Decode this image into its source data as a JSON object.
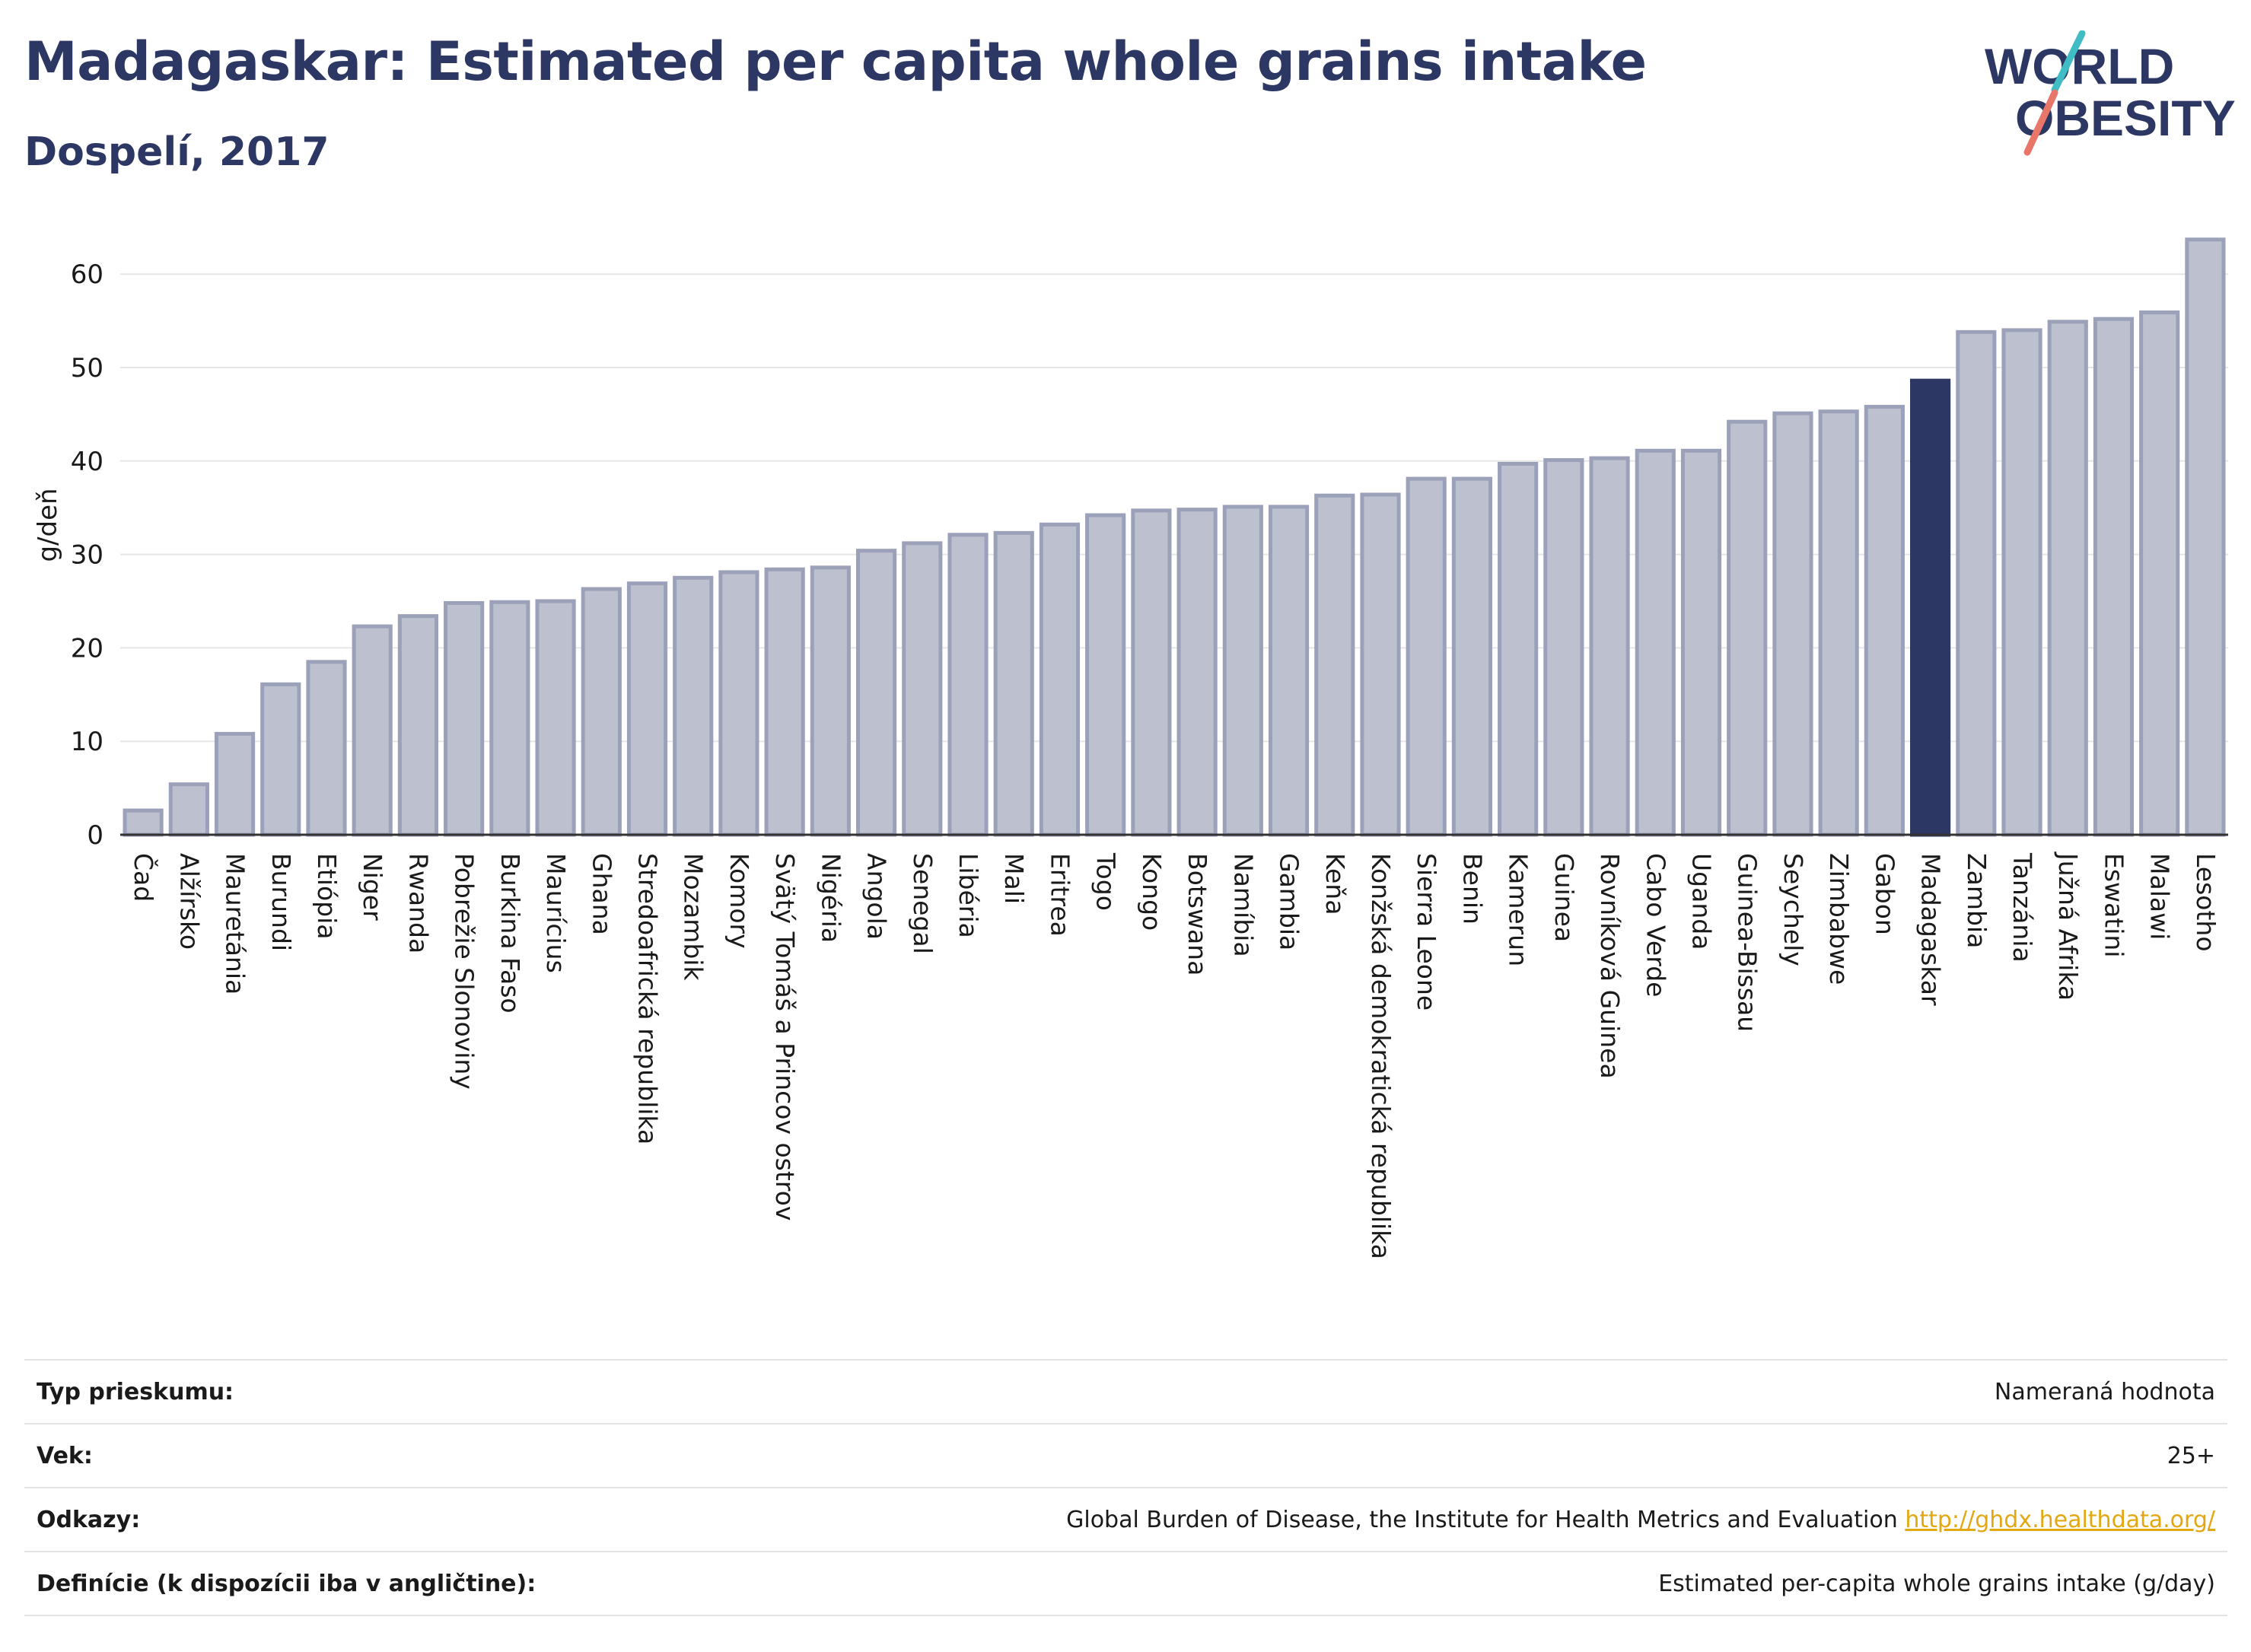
{
  "header": {
    "title": "Madagaskar: Estimated per capita whole grains intake",
    "subtitle": "Dospelí, 2017",
    "logo_line1": "WORLD",
    "logo_line2": "OBESITY"
  },
  "colors": {
    "title": "#2c3764",
    "bar_fill": "#bcc0cf",
    "bar_stroke": "#9ba1b8",
    "highlight": "#2c3764",
    "grid": "#e6e6e6",
    "link": "#e3a712",
    "logo_teal": "#3fbcc4",
    "logo_coral": "#e8776a"
  },
  "chart_data": {
    "type": "bar",
    "ylabel": "g/deň",
    "ylim": [
      0,
      65
    ],
    "yticks": [
      0,
      10,
      20,
      30,
      40,
      50,
      60
    ],
    "grid": true,
    "highlight": "Madagaskar",
    "categories": [
      "Čad",
      "Alžírsko",
      "Mauretánia",
      "Burundi",
      "Etiópia",
      "Niger",
      "Rwanda",
      "Pobrežie Slonoviny",
      "Burkina Faso",
      "Maurícius",
      "Ghana",
      "Stredoafrická republika",
      "Mozambik",
      "Komory",
      "Svätý Tomáš a Princov ostrov",
      "Nigéria",
      "Angola",
      "Senegal",
      "Libéria",
      "Mali",
      "Eritrea",
      "Togo",
      "Kongo",
      "Botswana",
      "Namíbia",
      "Gambia",
      "Keňa",
      "Konžská demokratická republika",
      "Sierra Leone",
      "Benin",
      "Kamerun",
      "Guinea",
      "Rovníková Guinea",
      "Cabo Verde",
      "Uganda",
      "Guinea-Bissau",
      "Seychely",
      "Zimbabwe",
      "Gabon",
      "Madagaskar",
      "Zambia",
      "Tanzánia",
      "Južná Afrika",
      "Eswatini",
      "Malawi",
      "Lesotho"
    ],
    "values": [
      2.6,
      5.4,
      10.8,
      16.1,
      18.5,
      22.3,
      23.4,
      24.8,
      24.9,
      25.0,
      26.3,
      26.9,
      27.5,
      28.1,
      28.4,
      28.6,
      30.4,
      31.2,
      32.1,
      32.3,
      33.2,
      34.2,
      34.7,
      34.8,
      35.1,
      35.1,
      36.3,
      36.4,
      38.1,
      38.1,
      39.7,
      40.1,
      40.3,
      41.1,
      41.1,
      44.2,
      45.1,
      45.3,
      45.8,
      48.6,
      53.8,
      54.0,
      54.9,
      55.2,
      55.9,
      63.7
    ]
  },
  "info": [
    {
      "label": "Typ prieskumu:",
      "value": "Nameraná hodnota"
    },
    {
      "label": "Vek:",
      "value": "25+"
    },
    {
      "label": "Odkazy:",
      "value": "Global Burden of Disease, the Institute for Health Metrics and Evaluation",
      "link": "http://ghdx.healthdata.org/"
    },
    {
      "label": "Definície (k dispozícii iba v angličtine):",
      "value": "Estimated per-capita whole grains intake (g/day)"
    }
  ]
}
